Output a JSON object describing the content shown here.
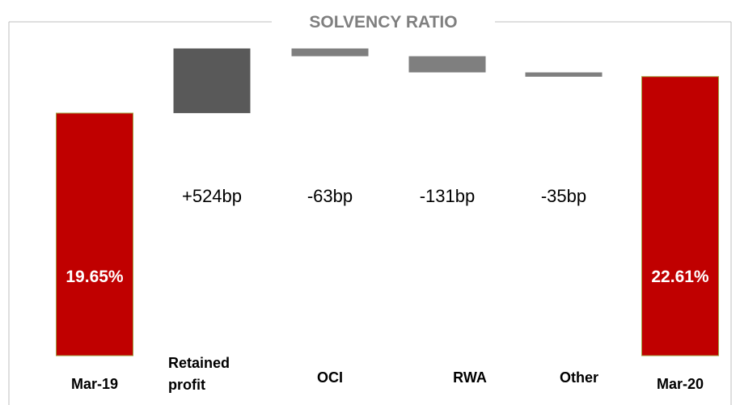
{
  "chart_data": {
    "type": "bar",
    "subtype": "waterfall",
    "title": "SOLVENCY RATIO",
    "categories": [
      "Mar-19",
      "Retained profit",
      "OCI",
      "RWA",
      "Other",
      "Mar-20"
    ],
    "category_lines": [
      [
        "Mar-19"
      ],
      [
        "Retained",
        "profit"
      ],
      [
        "OCI"
      ],
      [
        "RWA"
      ],
      [
        "Other"
      ],
      [
        "Mar-20"
      ]
    ],
    "values_bp": [
      1965,
      524,
      -63,
      -131,
      -35,
      2261
    ],
    "kinds": [
      "total",
      "delta",
      "delta",
      "delta",
      "delta",
      "total"
    ],
    "labels": [
      "19.65%",
      "+524bp",
      "-63bp",
      "-131bp",
      "-35bp",
      "22.61%"
    ],
    "legend": "none",
    "grid": false
  },
  "colors": {
    "total": "#c00000",
    "total_border": "#a0a040",
    "increase": "#595959",
    "decrease": "#7f7f7f",
    "title": "#7f7f7f",
    "frame": "#bfbfbf"
  }
}
